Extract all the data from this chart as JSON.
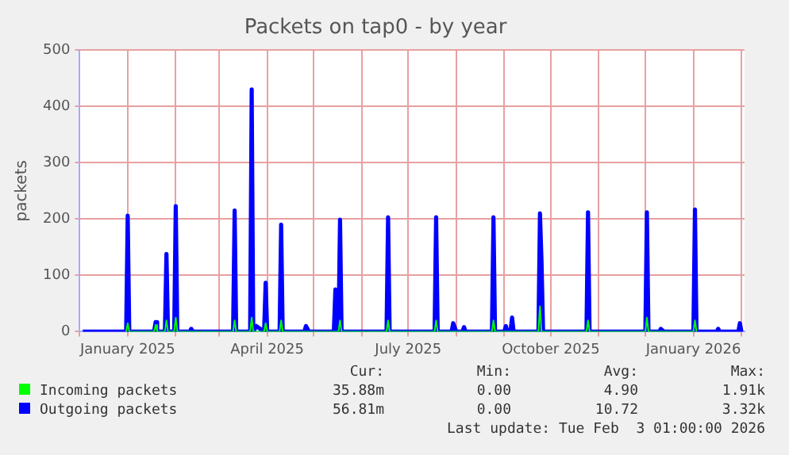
{
  "chart_data": {
    "type": "line",
    "title": "Packets on tap0 - by year",
    "ylabel": "packets",
    "xlim": [
      "2024-12-01",
      "2026-02-03"
    ],
    "xticks": [
      {
        "value": "2024-12-01",
        "label": null
      },
      {
        "value": "2025-01-01",
        "label": "January 2025"
      },
      {
        "value": "2025-02-01",
        "label": null
      },
      {
        "value": "2025-03-01",
        "label": null
      },
      {
        "value": "2025-04-01",
        "label": "April 2025"
      },
      {
        "value": "2025-05-01",
        "label": null
      },
      {
        "value": "2025-06-01",
        "label": null
      },
      {
        "value": "2025-07-01",
        "label": "July 2025"
      },
      {
        "value": "2025-08-01",
        "label": null
      },
      {
        "value": "2025-09-01",
        "label": null
      },
      {
        "value": "2025-10-01",
        "label": "October 2025"
      },
      {
        "value": "2025-11-01",
        "label": null
      },
      {
        "value": "2025-12-01",
        "label": null
      },
      {
        "value": "2026-01-01",
        "label": "January 2026"
      },
      {
        "value": "2026-02-01",
        "label": null
      }
    ],
    "ylim": [
      0,
      500
    ],
    "yticks": [
      0,
      100,
      200,
      300,
      400,
      500
    ],
    "grid": true,
    "legend": "bottom",
    "marker": "none",
    "line_style": "solid",
    "series": [
      {
        "name": "Incoming packets",
        "color": "#00ff00",
        "x": [
          "2024-12-31",
          "2025-01-01",
          "2025-01-02",
          "2025-01-18",
          "2025-01-19",
          "2025-01-20",
          "2025-01-25",
          "2025-01-26",
          "2025-01-27",
          "2025-01-31",
          "2025-02-01",
          "2025-02-02",
          "2025-03-10",
          "2025-03-11",
          "2025-03-12",
          "2025-03-21",
          "2025-03-22",
          "2025-03-23",
          "2025-03-30",
          "2025-03-31",
          "2025-04-01",
          "2025-04-09",
          "2025-04-10",
          "2025-04-11",
          "2025-05-17",
          "2025-05-18",
          "2025-05-19",
          "2025-06-17",
          "2025-06-18",
          "2025-06-19",
          "2025-07-18",
          "2025-07-19",
          "2025-07-20",
          "2025-08-24",
          "2025-08-25",
          "2025-08-26",
          "2025-09-23",
          "2025-09-24",
          "2025-09-25",
          "2025-10-24",
          "2025-10-25",
          "2025-10-26",
          "2025-12-01",
          "2025-12-02",
          "2025-12-03",
          "2026-01-01",
          "2026-01-02",
          "2026-01-03"
        ],
        "values": [
          0,
          15,
          0,
          0,
          12,
          0,
          0,
          20,
          0,
          0,
          25,
          0,
          0,
          20,
          0,
          0,
          25,
          0,
          0,
          15,
          0,
          0,
          20,
          0,
          0,
          20,
          0,
          0,
          20,
          0,
          0,
          20,
          0,
          0,
          20,
          0,
          0,
          45,
          0,
          0,
          20,
          0,
          0,
          25,
          0,
          0,
          20,
          0
        ]
      },
      {
        "name": "Outgoing packets",
        "color": "#0000ff",
        "x": [
          "2024-12-03",
          "2024-12-31",
          "2025-01-01",
          "2025-01-02",
          "2025-01-18",
          "2025-01-19",
          "2025-01-20",
          "2025-01-25",
          "2025-01-26",
          "2025-01-27",
          "2025-01-31",
          "2025-02-01",
          "2025-02-02",
          "2025-02-10",
          "2025-02-11",
          "2025-02-12",
          "2025-03-10",
          "2025-03-11",
          "2025-03-12",
          "2025-03-21",
          "2025-03-22",
          "2025-03-23",
          "2025-03-25",
          "2025-03-30",
          "2025-03-31",
          "2025-04-01",
          "2025-04-09",
          "2025-04-10",
          "2025-04-11",
          "2025-04-25",
          "2025-04-26",
          "2025-04-28",
          "2025-05-14",
          "2025-05-15",
          "2025-05-16",
          "2025-05-17",
          "2025-05-18",
          "2025-05-19",
          "2025-06-17",
          "2025-06-18",
          "2025-06-19",
          "2025-07-18",
          "2025-07-19",
          "2025-07-20",
          "2025-07-29",
          "2025-07-30",
          "2025-08-01",
          "2025-08-05",
          "2025-08-06",
          "2025-08-07",
          "2025-08-24",
          "2025-08-25",
          "2025-08-26",
          "2025-09-01",
          "2025-09-02",
          "2025-09-03",
          "2025-09-05",
          "2025-09-06",
          "2025-09-07",
          "2025-09-23",
          "2025-09-24",
          "2025-09-25",
          "2025-09-26",
          "2025-10-24",
          "2025-10-25",
          "2025-10-26",
          "2025-12-01",
          "2025-12-02",
          "2025-12-03",
          "2025-12-10",
          "2025-12-11",
          "2025-12-13",
          "2026-01-01",
          "2026-01-02",
          "2026-01-03",
          "2026-01-16",
          "2026-01-17",
          "2026-01-18",
          "2026-01-30",
          "2026-01-31",
          "2026-02-01",
          "2026-02-02"
        ],
        "values": [
          0,
          0,
          206,
          0,
          0,
          17,
          0,
          0,
          138,
          0,
          0,
          223,
          0,
          0,
          5,
          0,
          0,
          215,
          0,
          0,
          430,
          0,
          10,
          0,
          87,
          0,
          0,
          190,
          0,
          0,
          10,
          0,
          0,
          75,
          0,
          0,
          199,
          0,
          0,
          203,
          0,
          0,
          203,
          0,
          0,
          15,
          0,
          0,
          8,
          0,
          0,
          203,
          0,
          0,
          10,
          0,
          0,
          25,
          0,
          0,
          210,
          125,
          0,
          0,
          212,
          0,
          0,
          212,
          0,
          0,
          5,
          0,
          0,
          217,
          0,
          0,
          5,
          0,
          0,
          15,
          0,
          0
        ]
      }
    ],
    "annotations": [
      "Cur:",
      "Min:",
      "Avg:",
      "Max:",
      "35.88m",
      "0.00",
      "4.90",
      "1.91k",
      "56.81m",
      "0.00",
      "10.72",
      "3.32k",
      "Last update: Tue Feb  3 01:00:00 2026"
    ]
  }
}
